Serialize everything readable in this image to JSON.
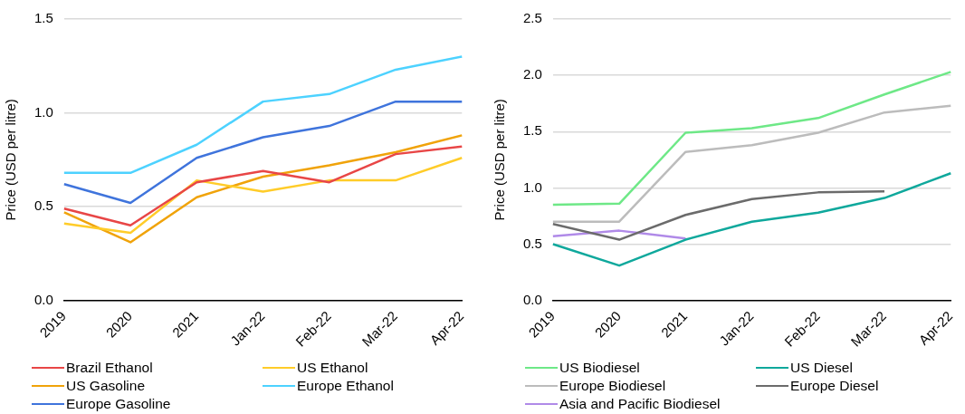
{
  "chart_data": [
    {
      "type": "line",
      "ylabel": "Price (USD per litre)",
      "categories": [
        "2019",
        "2020",
        "2021",
        "Jan-22",
        "Feb-22",
        "Mar-22",
        "Apr-22"
      ],
      "ylim": [
        0,
        1.5
      ],
      "yticks": [
        {
          "value": 0,
          "label": "0.0"
        },
        0.5,
        {
          "value": 1,
          "label": "1.0"
        },
        1.5
      ],
      "grid": "y",
      "legend": "bottom",
      "series": [
        {
          "name": "Brazil Ethanol",
          "color": "#e84646",
          "values": [
            0.49,
            0.4,
            0.63,
            0.69,
            0.63,
            0.78,
            0.82
          ]
        },
        {
          "name": "US Ethanol",
          "color": "#ffcc29",
          "values": [
            0.41,
            0.36,
            0.64,
            0.58,
            0.64,
            0.64,
            0.76
          ]
        },
        {
          "name": "US Gasoline",
          "color": "#f0a30a",
          "values": [
            0.47,
            0.31,
            0.55,
            0.66,
            0.72,
            0.79,
            0.88
          ]
        },
        {
          "name": "Europe Ethanol",
          "color": "#4dd2ff",
          "values": [
            0.68,
            0.68,
            0.83,
            1.06,
            1.1,
            1.23,
            1.3
          ]
        },
        {
          "name": "Europe Gasoline",
          "color": "#3f74dc",
          "values": [
            0.62,
            0.52,
            0.76,
            0.87,
            0.93,
            1.06,
            1.06
          ]
        }
      ]
    },
    {
      "type": "line",
      "ylabel": "Price (USD per litre)",
      "categories": [
        "2019",
        "2020",
        "2021",
        "Jan-22",
        "Feb-22",
        "Mar-22",
        "Apr-22"
      ],
      "ylim": [
        0,
        2.5
      ],
      "yticks": [
        {
          "value": 0,
          "label": "0.0"
        },
        0.5,
        {
          "value": 1,
          "label": "1.0"
        },
        1.5,
        {
          "value": 2,
          "label": "2.0"
        },
        2.5
      ],
      "grid": "y",
      "legend": "bottom",
      "series": [
        {
          "name": "US Biodiesel",
          "color": "#6ee887",
          "values": [
            0.85,
            0.86,
            1.49,
            1.53,
            1.62,
            1.83,
            2.03
          ]
        },
        {
          "name": "US Diesel",
          "color": "#0fa89c",
          "values": [
            0.5,
            0.31,
            0.54,
            0.7,
            0.78,
            0.91,
            1.13
          ]
        },
        {
          "name": "Europe Biodiesel",
          "color": "#bcbcbc",
          "values": [
            0.7,
            0.7,
            1.32,
            1.38,
            1.49,
            1.67,
            1.73
          ]
        },
        {
          "name": "Europe Diesel",
          "color": "#6b6b6b",
          "values": [
            0.68,
            0.54,
            0.76,
            0.9,
            0.96,
            0.97,
            null
          ]
        },
        {
          "name": "Asia and Pacific Biodiesel",
          "color": "#b08ae8",
          "values": [
            0.57,
            0.62,
            0.55,
            null,
            null,
            null,
            null
          ]
        }
      ]
    }
  ]
}
